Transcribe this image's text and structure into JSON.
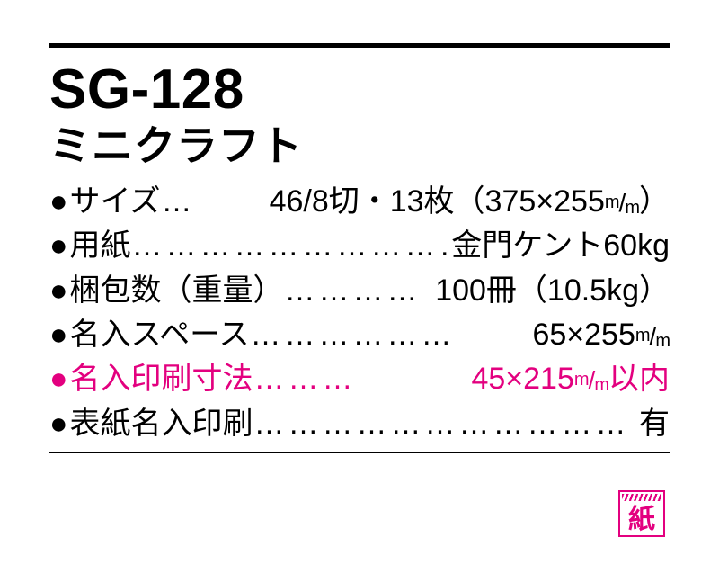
{
  "product": {
    "code": "SG-128",
    "name": "ミニクラフト"
  },
  "specs": [
    {
      "bullet": "●",
      "label": "サイズ",
      "leader": "…",
      "value_prefix": " 46/8切・13枚（375×255",
      "value_unit": "mm",
      "value_suffix": "）",
      "highlight": false
    },
    {
      "bullet": "●",
      "label": "用紙",
      "leader": "…………………………",
      "value_prefix": " 金門ケント60kg",
      "value_unit": "",
      "value_suffix": "",
      "highlight": false
    },
    {
      "bullet": "●",
      "label": "梱包数（重量）",
      "leader": "…………",
      "value_prefix": "100冊（10.5kg）",
      "value_unit": "",
      "value_suffix": "",
      "highlight": false
    },
    {
      "bullet": "●",
      "label": "名入スペース",
      "leader": "………………",
      "value_prefix": "65×255",
      "value_unit": "mm",
      "value_suffix": "",
      "highlight": false
    },
    {
      "bullet": "●",
      "label": "名入印刷寸法",
      "leader": "………",
      "value_prefix": " 45×215",
      "value_unit": "mm",
      "value_suffix": "以内",
      "highlight": true
    },
    {
      "bullet": "●",
      "label": "表紙名入印刷",
      "leader": "……………………………",
      "value_prefix": "有",
      "value_unit": "",
      "value_suffix": "",
      "highlight": false
    }
  ],
  "stamp": {
    "text": "紙"
  },
  "colors": {
    "highlight": "#e3007f",
    "text": "#000000",
    "background": "#ffffff"
  }
}
